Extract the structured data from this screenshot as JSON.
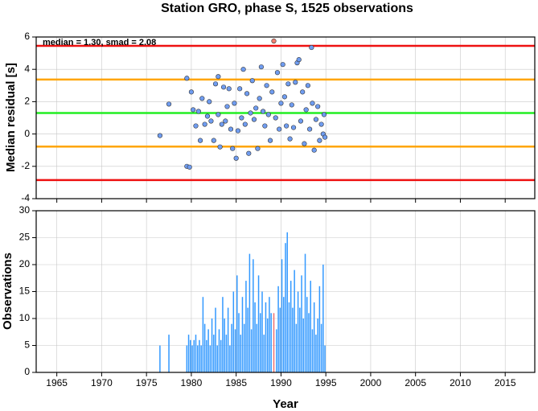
{
  "chart_data": [
    {
      "type": "scatter",
      "title": "Station GRO, phase S, 1525 observations",
      "y_label": "Median residual [s]",
      "annotation": "median = 1.30, smad = 2.08",
      "xlim": [
        1962.7,
        2018.3
      ],
      "xticks": [
        1965,
        1970,
        1975,
        1980,
        1985,
        1990,
        1995,
        2000,
        2005,
        2010,
        2015
      ],
      "ylim": [
        -4,
        6
      ],
      "yticks": [
        -4,
        -2,
        0,
        2,
        4,
        6
      ],
      "grid": true,
      "hlines": [
        {
          "value": 5.45,
          "color": "#ee1111"
        },
        {
          "value": 3.37,
          "color": "#ffa500"
        },
        {
          "value": 1.3,
          "color": "#22ee22"
        },
        {
          "value": -0.78,
          "color": "#ffa500"
        },
        {
          "value": -2.85,
          "color": "#ee1111"
        }
      ],
      "series": [
        {
          "color": "#6f9cf0",
          "x": [
            1976.5,
            1977.5,
            1979.5,
            1979.5,
            1979.8,
            1980.0,
            1980.2,
            1980.5,
            1980.8,
            1981.0,
            1981.2,
            1981.5,
            1981.8,
            1982.0,
            1982.2,
            1982.5,
            1982.7,
            1983.0,
            1983.0,
            1983.2,
            1983.4,
            1983.6,
            1983.8,
            1984.0,
            1984.2,
            1984.4,
            1984.6,
            1984.8,
            1985.0,
            1985.2,
            1985.4,
            1985.6,
            1985.8,
            1986.0,
            1986.2,
            1986.4,
            1986.6,
            1986.8,
            1987.0,
            1987.2,
            1987.4,
            1987.6,
            1987.8,
            1988.0,
            1988.2,
            1988.4,
            1988.6,
            1988.8,
            1989.0,
            1989.4,
            1989.6,
            1989.8,
            1990.0,
            1990.2,
            1990.4,
            1990.6,
            1990.8,
            1991.0,
            1991.2,
            1991.4,
            1991.6,
            1991.8,
            1992.0,
            1992.2,
            1992.4,
            1992.6,
            1992.8,
            1993.0,
            1993.2,
            1993.4,
            1993.5,
            1993.7,
            1993.9,
            1994.1,
            1994.3,
            1994.5,
            1994.7,
            1994.8,
            1994.9
          ],
          "values": [
            -0.1,
            1.85,
            3.45,
            -2.0,
            -2.05,
            2.6,
            1.5,
            0.5,
            1.4,
            -0.4,
            2.2,
            0.6,
            1.1,
            2.0,
            0.8,
            -0.4,
            3.1,
            3.55,
            1.2,
            -0.8,
            0.6,
            2.9,
            0.8,
            1.7,
            2.8,
            0.3,
            -0.9,
            1.9,
            -1.5,
            0.2,
            2.8,
            1.0,
            4.0,
            0.6,
            2.5,
            -1.2,
            1.3,
            3.3,
            0.9,
            1.6,
            -0.9,
            2.2,
            4.15,
            1.4,
            0.5,
            3.0,
            1.2,
            -0.4,
            2.6,
            1.0,
            3.8,
            0.3,
            1.9,
            4.3,
            2.3,
            0.5,
            3.1,
            -0.3,
            1.8,
            0.4,
            3.2,
            4.4,
            4.6,
            0.8,
            2.6,
            -0.6,
            1.5,
            3.0,
            0.3,
            5.35,
            1.9,
            -1.0,
            0.9,
            1.7,
            -0.4,
            0.6,
            0.0,
            1.2,
            -0.2
          ]
        },
        {
          "color": "#f08070",
          "x": [
            1989.2
          ],
          "values": [
            5.75
          ]
        }
      ]
    },
    {
      "type": "bar",
      "x_label": "Year",
      "y_label": "Observations",
      "xlim": [
        1962.7,
        2018.3
      ],
      "xticks": [
        1965,
        1970,
        1975,
        1980,
        1985,
        1990,
        1995,
        2000,
        2005,
        2010,
        2015
      ],
      "ylim": [
        0,
        30
      ],
      "yticks": [
        0,
        5,
        10,
        15,
        20,
        25,
        30
      ],
      "grid": true,
      "series": [
        {
          "color": "#3399ff",
          "x": [
            1976.5,
            1977.5,
            1979.5,
            1979.7,
            1979.9,
            1980.1,
            1980.3,
            1980.5,
            1980.7,
            1980.9,
            1981.1,
            1981.3,
            1981.5,
            1981.7,
            1981.9,
            1982.1,
            1982.3,
            1982.5,
            1982.7,
            1982.9,
            1983.1,
            1983.3,
            1983.5,
            1983.7,
            1983.9,
            1984.1,
            1984.3,
            1984.5,
            1984.7,
            1984.9,
            1985.1,
            1985.3,
            1985.5,
            1985.7,
            1985.9,
            1986.1,
            1986.3,
            1986.5,
            1986.7,
            1986.9,
            1987.1,
            1987.3,
            1987.5,
            1987.7,
            1987.9,
            1988.1,
            1988.3,
            1988.5,
            1988.7,
            1988.9,
            1989.5,
            1989.7,
            1989.9,
            1990.1,
            1990.3,
            1990.5,
            1990.7,
            1990.9,
            1991.1,
            1991.3,
            1991.5,
            1991.7,
            1991.9,
            1992.1,
            1992.3,
            1992.5,
            1992.7,
            1992.9,
            1993.1,
            1993.3,
            1993.5,
            1993.7,
            1993.9,
            1994.1,
            1994.3,
            1994.5,
            1994.7,
            1994.9
          ],
          "values": [
            5,
            7,
            5,
            7,
            6,
            5,
            6,
            7,
            5,
            6,
            5,
            14,
            9,
            6,
            8,
            5,
            10,
            7,
            12,
            5,
            8,
            6,
            14,
            10,
            7,
            12,
            5,
            9,
            15,
            8,
            18,
            11,
            7,
            14,
            9,
            17,
            12,
            22,
            8,
            21,
            13,
            9,
            18,
            11,
            15,
            7,
            13,
            10,
            14,
            11,
            8,
            16,
            12,
            21,
            14,
            24,
            26,
            13,
            17,
            12,
            19,
            9,
            15,
            12,
            18,
            10,
            22,
            14,
            11,
            17,
            8,
            13,
            7,
            10,
            16,
            9,
            20,
            5
          ]
        },
        {
          "color": "#f07070",
          "x": [
            1989.2
          ],
          "values": [
            11
          ]
        }
      ]
    }
  ]
}
